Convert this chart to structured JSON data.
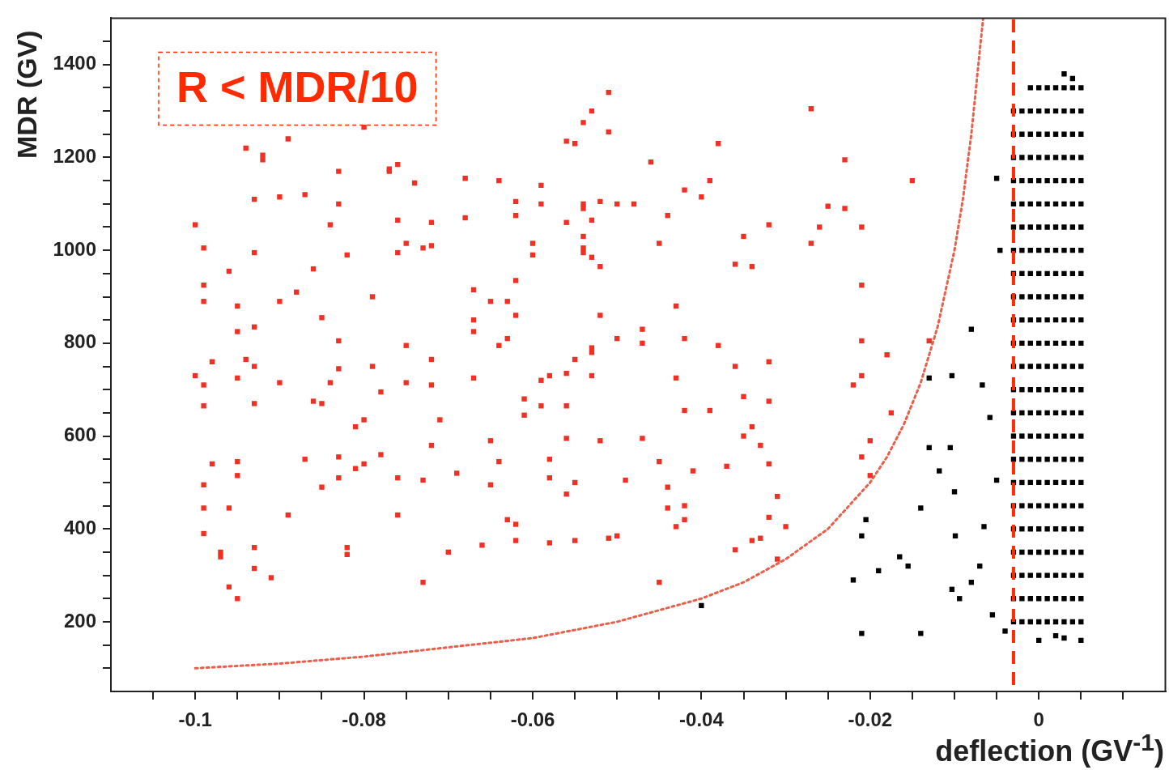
{
  "chart_data": {
    "type": "scatter",
    "xlabel": "deflection (GV$^{-1}$)",
    "ylabel": "MDR (GV)",
    "marker": "square",
    "annotations": [
      "R < MDR/10"
    ],
    "xlim": [
      -0.11,
      0.015
    ],
    "ylim": [
      50,
      1500
    ],
    "xticks": [
      {
        "value": -0.105,
        "label": null
      },
      -0.1,
      {
        "value": -0.095,
        "label": null
      },
      {
        "value": -0.09,
        "label": null
      },
      {
        "value": -0.085,
        "label": null
      },
      -0.08,
      {
        "value": -0.075,
        "label": null
      },
      {
        "value": -0.07,
        "label": null
      },
      {
        "value": -0.065,
        "label": null
      },
      -0.06,
      {
        "value": -0.055,
        "label": null
      },
      {
        "value": -0.05,
        "label": null
      },
      {
        "value": -0.045,
        "label": null
      },
      -0.04,
      {
        "value": -0.035,
        "label": null
      },
      {
        "value": -0.03,
        "label": null
      },
      {
        "value": -0.025,
        "label": null
      },
      -0.02,
      {
        "value": -0.015,
        "label": null
      },
      {
        "value": -0.01,
        "label": null
      },
      {
        "value": -0.005,
        "label": null
      },
      0,
      {
        "value": 0.005,
        "label": null
      },
      {
        "value": 0.01,
        "label": null
      }
    ],
    "yticks": [
      {
        "value": 100,
        "label": null
      },
      {
        "value": 150,
        "label": null
      },
      200,
      {
        "value": 250,
        "label": null
      },
      {
        "value": 300,
        "label": null
      },
      {
        "value": 350,
        "label": null
      },
      400,
      {
        "value": 450,
        "label": null
      },
      {
        "value": 500,
        "label": null
      },
      {
        "value": 550,
        "label": null
      },
      600,
      {
        "value": 650,
        "label": null
      },
      {
        "value": 700,
        "label": null
      },
      {
        "value": 750,
        "label": null
      },
      800,
      {
        "value": 850,
        "label": null
      },
      {
        "value": 900,
        "label": null
      },
      {
        "value": 950,
        "label": null
      },
      1000,
      {
        "value": 1050,
        "label": null
      },
      {
        "value": 1100,
        "label": null
      },
      {
        "value": 1150,
        "label": null
      },
      1200,
      {
        "value": 1250,
        "label": null
      },
      {
        "value": 1300,
        "label": null
      },
      {
        "value": 1350,
        "label": null
      },
      1400,
      {
        "value": 1450,
        "label": null
      }
    ],
    "ref_lines": [
      {
        "axis": "x",
        "value": -0.003,
        "color": "#ff2a00",
        "line_style": "dashed"
      }
    ],
    "series": [
      {
        "color": "#000000",
        "x": [
          -0.003,
          -0.002,
          -0.001,
          0,
          0.001,
          0.002,
          0.003,
          0.004,
          0.005,
          -0.003,
          -0.002,
          -0.001,
          0,
          0.001,
          0.002,
          0.003,
          0.004,
          0.005,
          -0.003,
          -0.002,
          -0.001,
          0,
          0.001,
          0.002,
          0.003,
          0.004,
          0.005,
          -0.003,
          -0.002,
          -0.001,
          0,
          0.001,
          0.002,
          0.003,
          0.004,
          0.005,
          -0.003,
          -0.002,
          -0.001,
          0,
          0.001,
          0.002,
          0.003,
          0.004,
          0.005,
          -0.003,
          -0.002,
          -0.001,
          0,
          0.001,
          0.002,
          0.003,
          0.004,
          0.005,
          -0.003,
          -0.002,
          -0.001,
          0,
          0.001,
          0.002,
          0.003,
          0.004,
          0.005,
          -0.003,
          -0.002,
          -0.001,
          0,
          0.001,
          0.002,
          0.003,
          0.004,
          0.005,
          -0.003,
          -0.002,
          -0.001,
          0,
          0.001,
          0.002,
          0.003,
          0.004,
          0.005,
          -0.003,
          -0.002,
          -0.001,
          0,
          0.001,
          0.002,
          0.003,
          0.004,
          0.005,
          -0.003,
          -0.002,
          -0.001,
          0,
          0.001,
          0.002,
          0.003,
          0.004,
          0.005,
          -0.003,
          -0.002,
          -0.001,
          0,
          0.001,
          0.002,
          0.003,
          0.004,
          0.005,
          -0.003,
          -0.002,
          -0.001,
          0,
          0.001,
          0.002,
          0.003,
          0.004,
          0.005,
          -0.003,
          -0.002,
          -0.001,
          0,
          0.001,
          0.002,
          0.003,
          0.004,
          0.005,
          -0.003,
          -0.002,
          -0.001,
          0,
          0.001,
          0.002,
          0.003,
          0.004,
          0.005,
          -0.003,
          -0.002,
          -0.001,
          0,
          0.001,
          0.002,
          0.003,
          0.004,
          0.005,
          -0.003,
          -0.002,
          -0.001,
          0,
          0.001,
          0.002,
          0.003,
          0.004,
          0.005,
          -0.003,
          -0.002,
          -0.001,
          0,
          0.001,
          0.002,
          0.003,
          0.004,
          0.005,
          -0.003,
          -0.002,
          -0.001,
          0,
          0.001,
          0.002,
          0.003,
          0.004,
          0.005,
          -0.003,
          -0.002,
          -0.001,
          0,
          0.001,
          0.002,
          0.003,
          0.004,
          0.005,
          -0.003,
          -0.002,
          -0.001,
          0,
          0.001,
          0.002,
          0.003,
          0.004,
          0.005,
          -0.003,
          -0.002,
          -0.001,
          0,
          0.001,
          0.002,
          0.003,
          0.004,
          0.005,
          -0.003,
          -0.002,
          -0.001,
          0,
          0.001,
          0.002,
          0.003,
          0.004,
          0.005,
          -0.001,
          0,
          0.001,
          0.002,
          0.003,
          0.004,
          0.005,
          0.003,
          0.004,
          0.002,
          0.005,
          0,
          0.003,
          -0.021,
          -0.014,
          -0.022,
          -0.019,
          -0.0165,
          -0.0155,
          -0.014,
          -0.013,
          -0.0105,
          -0.01,
          -0.0099,
          -0.0094,
          -0.008,
          -0.0067,
          -0.0058,
          -0.005,
          -0.0046,
          -0.005,
          -0.0103,
          -0.013,
          -0.007,
          -0.008,
          -0.0055,
          -0.004,
          -0.0065,
          -0.0118,
          -0.0205,
          -0.021,
          -0.0103,
          -0.04
        ],
        "values": [
          250,
          250,
          250,
          250,
          250,
          250,
          250,
          250,
          250,
          350,
          350,
          350,
          350,
          350,
          350,
          350,
          350,
          350,
          450,
          450,
          450,
          450,
          450,
          450,
          450,
          450,
          450,
          550,
          550,
          550,
          550,
          550,
          550,
          550,
          550,
          550,
          650,
          650,
          650,
          650,
          650,
          650,
          650,
          650,
          650,
          750,
          750,
          750,
          750,
          750,
          750,
          750,
          750,
          750,
          850,
          850,
          850,
          850,
          850,
          850,
          850,
          850,
          850,
          950,
          950,
          950,
          950,
          950,
          950,
          950,
          950,
          950,
          1050,
          1050,
          1050,
          1050,
          1050,
          1050,
          1050,
          1050,
          1050,
          1150,
          1150,
          1150,
          1150,
          1150,
          1150,
          1150,
          1150,
          1150,
          1250,
          1250,
          1250,
          1250,
          1250,
          1250,
          1250,
          1250,
          1250,
          200,
          200,
          200,
          200,
          200,
          200,
          200,
          200,
          200,
          300,
          300,
          300,
          300,
          300,
          300,
          300,
          300,
          300,
          400,
          400,
          400,
          400,
          400,
          400,
          400,
          400,
          400,
          500,
          500,
          500,
          500,
          500,
          500,
          500,
          500,
          500,
          600,
          600,
          600,
          600,
          600,
          600,
          600,
          600,
          600,
          700,
          700,
          700,
          700,
          700,
          700,
          700,
          700,
          700,
          800,
          800,
          800,
          800,
          800,
          800,
          800,
          800,
          800,
          900,
          900,
          900,
          900,
          900,
          900,
          900,
          900,
          900,
          1000,
          1000,
          1000,
          1000,
          1000,
          1000,
          1000,
          1000,
          1000,
          1100,
          1100,
          1100,
          1100,
          1100,
          1100,
          1100,
          1100,
          1100,
          1200,
          1200,
          1200,
          1200,
          1200,
          1200,
          1200,
          1200,
          1200,
          1300,
          1300,
          1300,
          1300,
          1300,
          1300,
          1300,
          1300,
          1300,
          1350,
          1350,
          1350,
          1350,
          1350,
          1350,
          1350,
          1380,
          1370,
          170,
          160,
          160,
          165,
          175,
          175,
          290,
          310,
          340,
          320,
          445,
          575,
          575,
          480,
          385,
          250,
          830,
          710,
          640,
          505,
          1000,
          1155,
          730,
          725,
          320,
          285,
          215,
          180,
          405,
          525,
          420,
          385,
          270,
          235
        ]
      },
      {
        "color": "#ee3124",
        "x": [
          -0.1,
          -0.099,
          -0.099,
          -0.1,
          -0.099,
          -0.099,
          -0.099,
          -0.098,
          -0.098,
          -0.099,
          -0.099,
          -0.099,
          -0.097,
          -0.097,
          -0.096,
          -0.095,
          -0.096,
          -0.096,
          -0.095,
          -0.095,
          -0.095,
          -0.095,
          -0.095,
          -0.094,
          -0.094,
          -0.093,
          -0.093,
          -0.093,
          -0.093,
          -0.093,
          -0.093,
          -0.093,
          -0.092,
          -0.092,
          -0.091,
          -0.09,
          -0.09,
          -0.09,
          -0.089,
          -0.089,
          -0.088,
          -0.087,
          -0.087,
          -0.086,
          -0.086,
          -0.085,
          -0.085,
          -0.085,
          -0.084,
          -0.084,
          -0.083,
          -0.083,
          -0.083,
          -0.083,
          -0.083,
          -0.083,
          -0.082,
          -0.082,
          -0.082,
          -0.081,
          -0.081,
          -0.08,
          -0.08,
          -0.08,
          -0.079,
          -0.079,
          -0.078,
          -0.078,
          -0.077,
          -0.077,
          -0.076,
          -0.076,
          -0.076,
          -0.075,
          -0.075,
          -0.076,
          -0.076,
          -0.075,
          -0.074,
          -0.073,
          -0.073,
          -0.073,
          -0.072,
          -0.072,
          -0.072,
          -0.072,
          -0.072,
          -0.071,
          -0.07,
          -0.069,
          -0.068,
          -0.068,
          -0.067,
          -0.067,
          -0.067,
          -0.067,
          -0.066,
          -0.065,
          -0.065,
          -0.065,
          -0.064,
          -0.064,
          -0.064,
          -0.063,
          -0.063,
          -0.063,
          -0.062,
          -0.062,
          -0.062,
          -0.062,
          -0.062,
          -0.062,
          -0.061,
          -0.061,
          -0.06,
          -0.06,
          -0.059,
          -0.059,
          -0.059,
          -0.059,
          -0.058,
          -0.058,
          -0.058,
          -0.058,
          -0.056,
          -0.056,
          -0.056,
          -0.056,
          -0.055,
          -0.056,
          -0.056,
          -0.055,
          -0.055,
          -0.055,
          -0.054,
          -0.054,
          -0.054,
          -0.054,
          -0.054,
          -0.053,
          -0.053,
          -0.053,
          -0.053,
          -0.053,
          -0.052,
          -0.052,
          -0.052,
          -0.052,
          -0.051,
          -0.051,
          -0.053,
          -0.054,
          -0.051,
          -0.05,
          -0.049,
          -0.05,
          -0.05,
          -0.048,
          -0.047,
          -0.047,
          -0.047,
          -0.046,
          -0.045,
          -0.045,
          -0.045,
          -0.044,
          -0.043,
          -0.043,
          -0.044,
          -0.044,
          -0.043,
          -0.042,
          -0.042,
          -0.042,
          -0.042,
          -0.041,
          -0.042,
          -0.04,
          -0.039,
          -0.039,
          -0.038,
          -0.038,
          -0.036,
          -0.036,
          -0.037,
          -0.036,
          -0.035,
          -0.035,
          -0.035,
          -0.034,
          -0.034,
          -0.034,
          -0.033,
          -0.033,
          -0.032,
          -0.032,
          -0.032,
          -0.032,
          -0.032,
          -0.031,
          -0.031,
          -0.03,
          -0.027,
          -0.027,
          -0.026,
          -0.025,
          -0.023,
          -0.023,
          -0.022,
          -0.021,
          -0.021,
          -0.021,
          -0.021,
          -0.021,
          -0.02,
          -0.02,
          -0.018,
          -0.015,
          -0.013,
          -0.0175
        ],
        "values": [
          1055,
          925,
          890,
          730,
          710,
          665,
          1005,
          760,
          540,
          495,
          445,
          390,
          350,
          340,
          275,
          250,
          445,
          955,
          880,
          825,
          725,
          545,
          515,
          765,
          1220,
          1110,
          360,
          315,
          835,
          750,
          995,
          670,
          1205,
          1195,
          295,
          1115,
          890,
          715,
          1240,
          430,
          910,
          1120,
          550,
          960,
          675,
          670,
          490,
          855,
          1055,
          715,
          1170,
          745,
          1100,
          805,
          555,
          510,
          345,
          360,
          990,
          620,
          530,
          1265,
          635,
          540,
          900,
          750,
          560,
          695,
          1175,
          1170,
          1185,
          1065,
          995,
          1015,
          795,
          510,
          430,
          715,
          1145,
          1005,
          285,
          505,
          1060,
          1010,
          710,
          765,
          580,
          635,
          350,
          520,
          1155,
          1070,
          915,
          850,
          825,
          725,
          365,
          890,
          495,
          590,
          795,
          545,
          1150,
          890,
          810,
          420,
          1105,
          1075,
          860,
          410,
          375,
          935,
          645,
          680,
          1015,
          990,
          1140,
          1100,
          720,
          665,
          550,
          510,
          370,
          730,
          1235,
          735,
          665,
          595,
          375,
          1060,
          475,
          765,
          1230,
          500,
          1100,
          1005,
          1030,
          995,
          1090,
          1065,
          780,
          730,
          985,
          790,
          965,
          590,
          1105,
          860,
          1255,
          1340,
          1300,
          1275,
          380,
          810,
          505,
          1100,
          385,
          1100,
          830,
          595,
          800,
          1190,
          1015,
          545,
          285,
          1075,
          880,
          725,
          490,
          445,
          405,
          655,
          450,
          810,
          420,
          525,
          1130,
          1115,
          1150,
          655,
          1230,
          795,
          750,
          970,
          535,
          355,
          685,
          600,
          1030,
          375,
          620,
          965,
          580,
          380,
          1055,
          540,
          760,
          425,
          675,
          335,
          470,
          405,
          1305,
          1015,
          1050,
          1095,
          1090,
          1195,
          710,
          730,
          1050,
          805,
          925,
          555,
          590,
          515,
          775,
          1150,
          805,
          650
        ]
      },
      {
        "type": "line",
        "color": "#e8604c",
        "marker": "none",
        "line_style": "dotted",
        "x": [
          -0.1,
          -0.09,
          -0.08,
          -0.07,
          -0.06,
          -0.05,
          -0.04,
          -0.035,
          -0.03,
          -0.025,
          -0.02,
          -0.018,
          -0.016,
          -0.014,
          -0.012,
          -0.01,
          -0.009,
          -0.008,
          -0.007,
          -0.0066
        ],
        "values": [
          100,
          110,
          125,
          145,
          165,
          200,
          250,
          285,
          335,
          400,
          500,
          555,
          625,
          715,
          835,
          1000,
          1110,
          1250,
          1430,
          1500
        ]
      }
    ]
  }
}
